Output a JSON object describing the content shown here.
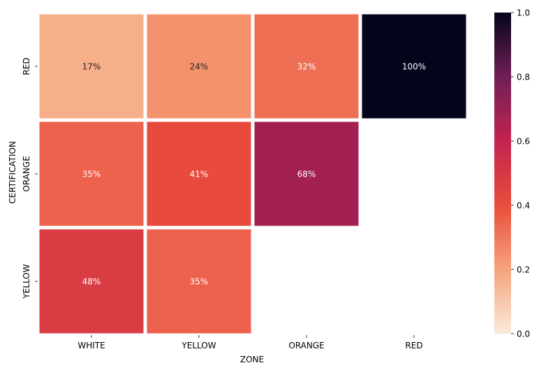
{
  "chart_data": {
    "type": "heatmap",
    "xlabel": "ZONE",
    "ylabel": "CERTIFICATION",
    "x_categories": [
      "WHITE",
      "YELLOW",
      "ORANGE",
      "RED"
    ],
    "y_categories": [
      "RED",
      "ORANGE",
      "YELLOW"
    ],
    "values": [
      [
        0.17,
        0.24,
        0.32,
        1.0
      ],
      [
        0.35,
        0.41,
        0.68,
        null
      ],
      [
        0.48,
        0.35,
        null,
        null
      ]
    ],
    "labels": [
      [
        "17%",
        "24%",
        "32%",
        "100%"
      ],
      [
        "35%",
        "41%",
        "68%",
        ""
      ],
      [
        "48%",
        "35%",
        "",
        ""
      ]
    ],
    "colorbar": {
      "range": [
        0,
        1
      ],
      "ticks": [
        "0.0",
        "0.2",
        "0.4",
        "0.6",
        "0.8",
        "1.0"
      ],
      "colormap": "rocket_r"
    }
  }
}
